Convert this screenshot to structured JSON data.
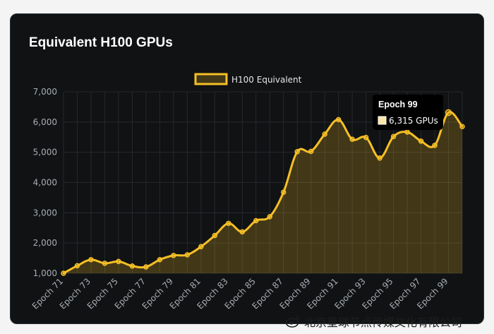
{
  "card": {
    "title": "Equivalent H100 GPUs"
  },
  "chart_data": {
    "type": "area",
    "title": "Equivalent H100 GPUs",
    "xlabel": "",
    "ylabel": "",
    "x": [
      "Epoch 71",
      "Epoch 72",
      "Epoch 73",
      "Epoch 74",
      "Epoch 75",
      "Epoch 76",
      "Epoch 77",
      "Epoch 78",
      "Epoch 79",
      "Epoch 80",
      "Epoch 81",
      "Epoch 82",
      "Epoch 83",
      "Epoch 84",
      "Epoch 85",
      "Epoch 86",
      "Epoch 87",
      "Epoch 88",
      "Epoch 89",
      "Epoch 90",
      "Epoch 91",
      "Epoch 92",
      "Epoch 93",
      "Epoch 94",
      "Epoch 95",
      "Epoch 96",
      "Epoch 97",
      "Epoch 98",
      "Epoch 99",
      "Epoch 100"
    ],
    "tick_labels": [
      "Epoch 71",
      "Epoch 73",
      "Epoch 75",
      "Epoch 77",
      "Epoch 79",
      "Epoch 81",
      "Epoch 83",
      "Epoch 85",
      "Epoch 87",
      "Epoch 89",
      "Epoch 91",
      "Epoch 93",
      "Epoch 95",
      "Epoch 97",
      "Epoch 99"
    ],
    "series": [
      {
        "name": "H100 Equivalent",
        "values": [
          1000,
          1250,
          1450,
          1330,
          1390,
          1240,
          1210,
          1450,
          1590,
          1610,
          1880,
          2250,
          2650,
          2370,
          2740,
          2870,
          3680,
          5020,
          5030,
          5600,
          6080,
          5430,
          5490,
          4810,
          5520,
          5670,
          5370,
          5230,
          6315,
          5850
        ]
      }
    ],
    "ylim": [
      1000,
      7000
    ],
    "yticks": [
      "1,000",
      "2,000",
      "3,000",
      "4,000",
      "5,000",
      "6,000",
      "7,000"
    ],
    "grid": true,
    "legend": "top-center",
    "colors": {
      "line": "#f6bf26",
      "fill": "rgba(246,191,38,0.22)",
      "grid": "#26292c"
    },
    "tooltip": {
      "title": "Epoch 99",
      "body": "6,315 GPUs",
      "index": 28
    }
  },
  "watermark": {
    "text": "北京星球节点传媒文化有限公司",
    "icon": "weibo-icon"
  }
}
